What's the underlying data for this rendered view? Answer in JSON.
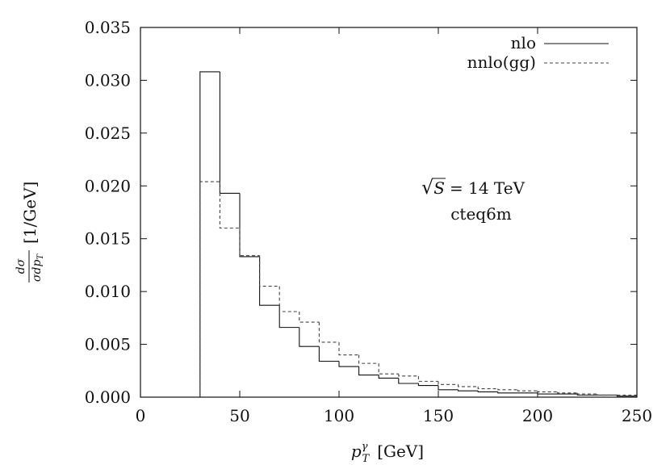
{
  "chart_data": {
    "type": "histogram",
    "bins": [
      30,
      40,
      50,
      60,
      70,
      80,
      90,
      100,
      110,
      120,
      130,
      140,
      150,
      160,
      170,
      180,
      190,
      200,
      210,
      220,
      230,
      240,
      250
    ],
    "series": [
      {
        "name": "nlo",
        "style": "solid",
        "values": [
          0.0308,
          0.0193,
          0.0133,
          0.0087,
          0.0066,
          0.0048,
          0.0034,
          0.0029,
          0.0021,
          0.0018,
          0.0013,
          0.0011,
          0.0007,
          0.0006,
          0.0005,
          0.0004,
          0.0004,
          0.0003,
          0.0003,
          0.0002,
          0.0002,
          0.0001
        ]
      },
      {
        "name": "nnlo(gg)",
        "style": "dashed",
        "values": [
          0.0204,
          0.016,
          0.0134,
          0.0105,
          0.0081,
          0.0071,
          0.0052,
          0.004,
          0.0032,
          0.0022,
          0.002,
          0.0015,
          0.0012,
          0.001,
          0.0008,
          0.0007,
          0.0006,
          0.0005,
          0.0004,
          0.0003,
          0.0002,
          0.0002
        ]
      }
    ],
    "xlim": [
      0,
      250
    ],
    "ylim": [
      0,
      0.035
    ],
    "xticks": [
      "0",
      "50",
      "100",
      "150",
      "200",
      "250"
    ],
    "yticks": [
      "0.000",
      "0.005",
      "0.010",
      "0.015",
      "0.020",
      "0.025",
      "0.030",
      "0.035"
    ],
    "xlabel": "p_T^γ [GeV]",
    "ylabel": "dσ/(σ dp_T) [1/GeV]",
    "legend_position": "top-right",
    "annotations": [
      "√S = 14 TeV",
      "cteq6m"
    ]
  },
  "labels": {
    "xlabel_main": "p",
    "xlabel_sup": "γ",
    "xlabel_sub": "T",
    "xlabel_unit": "[GeV]",
    "ylabel_num": "dσ",
    "ylabel_den": "σdp",
    "ylabel_den_sub": "T",
    "ylabel_unit": "[1/GeV]",
    "annot_sqrt_symbol": "√",
    "annot_s": "S",
    "annot_energy": "= 14 TeV",
    "annot_pdf": "cteq6m"
  }
}
